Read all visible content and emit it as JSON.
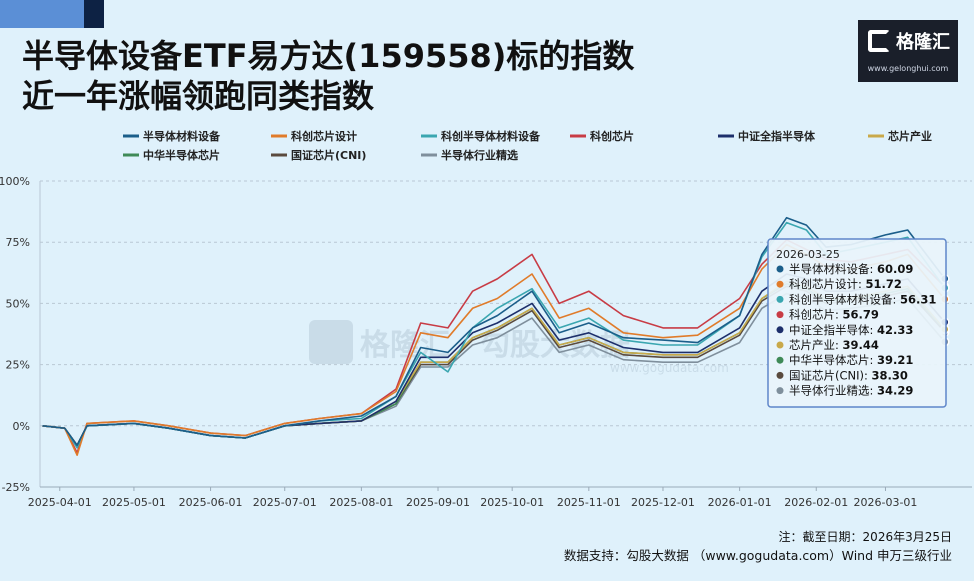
{
  "header": {
    "title_line1": "半导体设备ETF易方达(159558)标的指数",
    "title_line2": "近一年涨幅领跑同类指数"
  },
  "logo": {
    "name": "格隆汇",
    "url": "www.gelonghui.com"
  },
  "watermark": {
    "name": "格隆汇",
    "tag": "勾股大数据",
    "url": "www.gogudata.com"
  },
  "tooltip": {
    "date": "2026-03-25"
  },
  "footer": {
    "note": "注：截至日期：2026年3月25日",
    "source": "数据支持：勾股大数据 （www.gogudata.com）Wind 申万三级行业"
  },
  "colors": {
    "background": "#dff1fb",
    "grid": "#b9c8d4",
    "tooltip_border": "#5f86c9",
    "tooltip_bg": "#e9f4fb"
  },
  "chart_data": {
    "type": "line",
    "ylim": [
      -25,
      100
    ],
    "yticks": [
      -25,
      0,
      25,
      50,
      75,
      100
    ],
    "ytick_labels": [
      "-25%",
      "0%",
      "25%",
      "50%",
      "75%",
      "100%"
    ],
    "xtick_labels": [
      "2025-04-01",
      "2025-05-01",
      "2025-06-01",
      "2025-07-01",
      "2025-08-01",
      "2025-09-01",
      "2025-10-01",
      "2025-11-01",
      "2025-12-01",
      "2026-01-01",
      "2026-02-01",
      "2026-03-01"
    ],
    "grid": true,
    "legend_position": "top",
    "x": [
      "2025-03-25",
      "2025-04-03",
      "2025-04-08",
      "2025-04-12",
      "2025-05-01",
      "2025-05-15",
      "2025-06-01",
      "2025-06-15",
      "2025-07-01",
      "2025-07-15",
      "2025-08-01",
      "2025-08-15",
      "2025-08-25",
      "2025-09-05",
      "2025-09-15",
      "2025-09-25",
      "2025-10-09",
      "2025-10-20",
      "2025-11-01",
      "2025-11-15",
      "2025-12-01",
      "2025-12-15",
      "2026-01-01",
      "2026-01-10",
      "2026-01-20",
      "2026-01-28",
      "2026-02-05",
      "2026-02-15",
      "2026-03-01",
      "2026-03-10",
      "2026-03-25"
    ],
    "series": [
      {
        "name": "半导体材料设备",
        "color": "#1b5e8a",
        "values": [
          0,
          -1,
          -8,
          0,
          1,
          -1,
          -4,
          -5,
          0,
          2,
          4,
          12,
          32,
          30,
          40,
          45,
          55,
          38,
          42,
          36,
          35,
          34,
          45,
          70,
          85,
          82,
          73,
          74,
          78,
          80,
          60.09
        ]
      },
      {
        "name": "科创芯片设计",
        "color": "#e07b2a",
        "values": [
          0,
          -1,
          -12,
          1,
          2,
          0,
          -3,
          -4,
          1,
          3,
          5,
          14,
          38,
          36,
          48,
          52,
          62,
          44,
          48,
          38,
          36,
          37,
          48,
          64,
          74,
          70,
          65,
          64,
          67,
          70,
          51.72
        ]
      },
      {
        "name": "科创半导体材料设备",
        "color": "#3aa6b0",
        "values": [
          0,
          -1,
          -9,
          0,
          1,
          -1,
          -4,
          -5,
          0,
          2,
          3,
          12,
          30,
          22,
          40,
          48,
          56,
          40,
          44,
          35,
          33,
          33,
          45,
          69,
          83,
          80,
          70,
          72,
          75,
          77,
          56.31
        ]
      },
      {
        "name": "科创芯片",
        "color": "#c83c45",
        "values": [
          0,
          -1,
          -11,
          1,
          2,
          0,
          -3,
          -4,
          1,
          3,
          5,
          15,
          42,
          40,
          55,
          60,
          70,
          50,
          55,
          45,
          40,
          40,
          52,
          66,
          76,
          72,
          68,
          67,
          70,
          72,
          56.79
        ]
      },
      {
        "name": "中证全指半导体",
        "color": "#1d2f6b",
        "values": [
          0,
          -1,
          -8,
          0,
          1,
          -1,
          -4,
          -5,
          0,
          1,
          2,
          10,
          28,
          28,
          38,
          42,
          50,
          35,
          38,
          32,
          30,
          30,
          40,
          55,
          62,
          60,
          55,
          55,
          58,
          60,
          42.33
        ]
      },
      {
        "name": "芯片产业",
        "color": "#c9a94a",
        "values": [
          0,
          -1,
          -8,
          0,
          1,
          -1,
          -4,
          -5,
          0,
          1,
          2,
          10,
          26,
          26,
          36,
          40,
          48,
          33,
          36,
          30,
          29,
          29,
          38,
          52,
          59,
          57,
          52,
          52,
          55,
          57,
          39.44
        ]
      },
      {
        "name": "中华半导体芯片",
        "color": "#3f8a57",
        "values": [
          0,
          -1,
          -8,
          0,
          1,
          -1,
          -4,
          -5,
          0,
          1,
          2,
          9,
          26,
          26,
          36,
          40,
          48,
          33,
          36,
          30,
          29,
          29,
          38,
          52,
          58,
          56,
          51,
          52,
          54,
          56,
          39.21
        ]
      },
      {
        "name": "国证芯片(CNI)",
        "color": "#5a4a3e",
        "values": [
          0,
          -1,
          -8,
          0,
          1,
          -1,
          -4,
          -5,
          0,
          1,
          2,
          9,
          25,
          25,
          35,
          39,
          47,
          32,
          35,
          29,
          28,
          28,
          37,
          51,
          57,
          55,
          50,
          51,
          53,
          55,
          38.3
        ]
      },
      {
        "name": "半导体行业精选",
        "color": "#7f8f9c",
        "values": [
          0,
          -1,
          -8,
          0,
          1,
          -1,
          -4,
          -5,
          0,
          1,
          2,
          8,
          24,
          24,
          33,
          36,
          44,
          30,
          33,
          27,
          26,
          26,
          34,
          48,
          54,
          52,
          47,
          48,
          50,
          52,
          34.29
        ]
      }
    ]
  }
}
